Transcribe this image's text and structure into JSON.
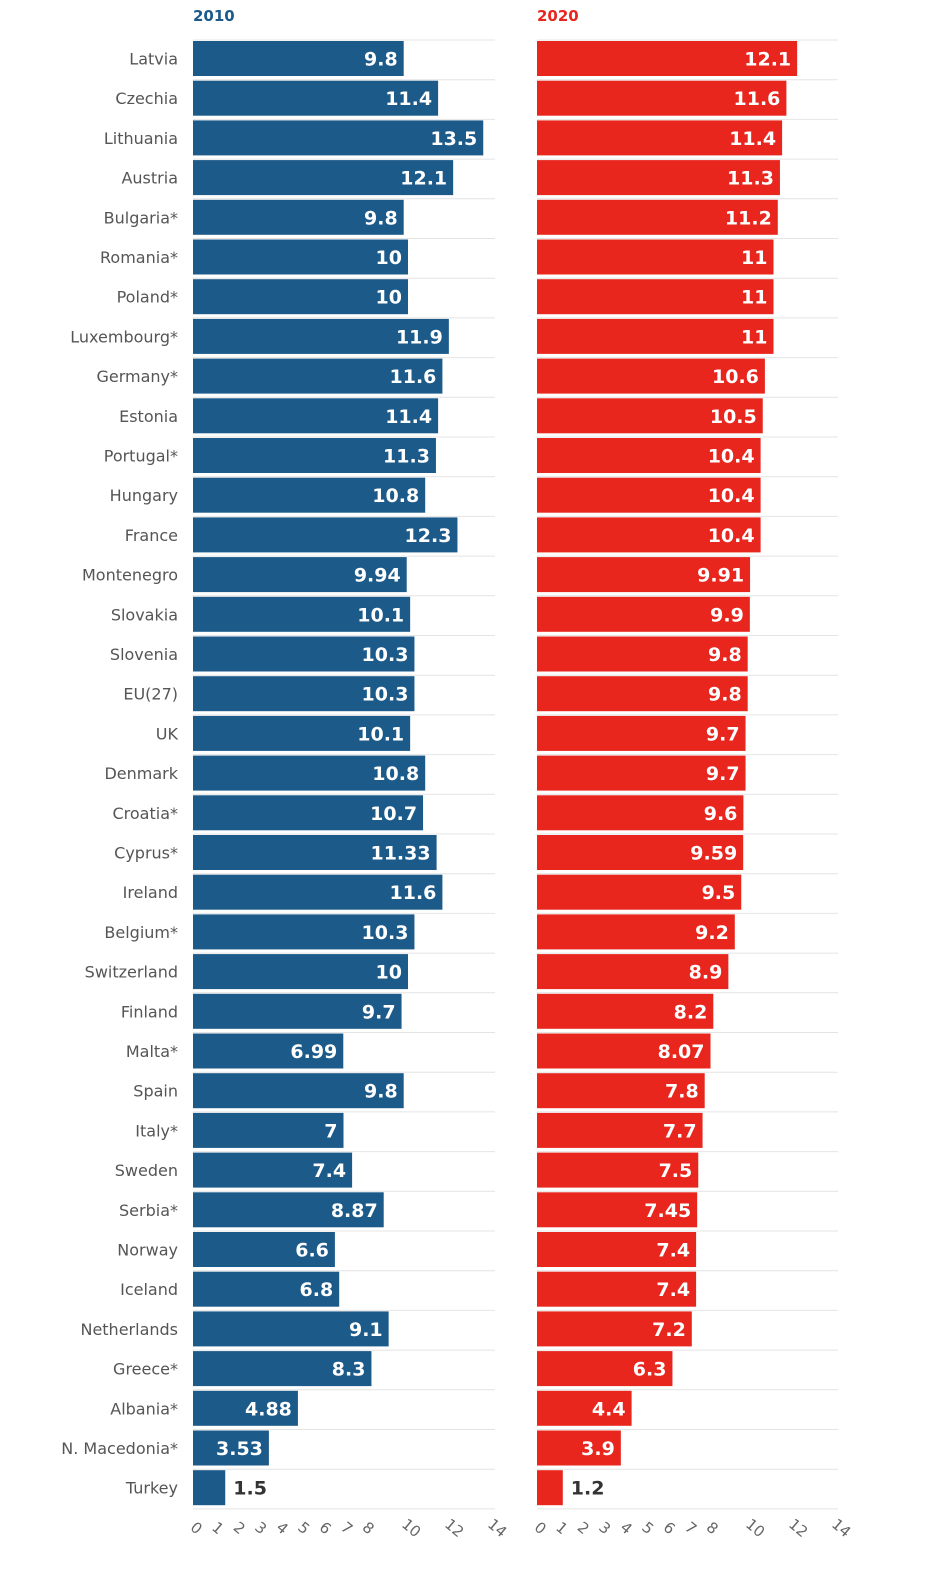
{
  "chart_data": {
    "type": "bar",
    "orientation": "horizontal",
    "categories": [
      "Latvia",
      "Czechia",
      "Lithuania",
      "Austria",
      "Bulgaria*",
      "Romania*",
      "Poland*",
      "Luxembourg*",
      "Germany*",
      "Estonia",
      "Portugal*",
      "Hungary",
      "France",
      "Montenegro",
      "Slovakia",
      "Slovenia",
      "EU(27)",
      "UK",
      "Denmark",
      "Croatia*",
      "Cyprus*",
      "Ireland",
      "Belgium*",
      "Switzerland",
      "Finland",
      "Malta*",
      "Spain",
      "Italy*",
      "Sweden",
      "Serbia*",
      "Norway",
      "Iceland",
      "Netherlands",
      "Greece*",
      "Albania*",
      "N. Macedonia*",
      "Turkey"
    ],
    "series": [
      {
        "name": "2010",
        "color": "#1c5a8a",
        "values": [
          9.8,
          11.4,
          13.5,
          12.1,
          9.8,
          10,
          10,
          11.9,
          11.6,
          11.4,
          11.3,
          10.8,
          12.3,
          9.94,
          10.1,
          10.3,
          10.3,
          10.1,
          10.8,
          10.7,
          11.33,
          11.6,
          10.3,
          10,
          9.7,
          6.99,
          9.8,
          7,
          7.4,
          8.87,
          6.6,
          6.8,
          9.1,
          8.3,
          4.88,
          3.53,
          1.5
        ],
        "labels": [
          "9.8",
          "11.4",
          "13.5",
          "12.1",
          "9.8",
          "10",
          "10",
          "11.9",
          "11.6",
          "11.4",
          "11.3",
          "10.8",
          "12.3",
          "9.94",
          "10.1",
          "10.3",
          "10.3",
          "10.1",
          "10.8",
          "10.7",
          "11.33",
          "11.6",
          "10.3",
          "10",
          "9.7",
          "6.99",
          "9.8",
          "7",
          "7.4",
          "8.87",
          "6.6",
          "6.8",
          "9.1",
          "8.3",
          "4.88",
          "3.53",
          "1.5"
        ]
      },
      {
        "name": "2020",
        "color": "#e8261e",
        "values": [
          12.1,
          11.6,
          11.4,
          11.3,
          11.2,
          11,
          11,
          11,
          10.6,
          10.5,
          10.4,
          10.4,
          10.4,
          9.91,
          9.9,
          9.8,
          9.8,
          9.7,
          9.7,
          9.6,
          9.59,
          9.5,
          9.2,
          8.9,
          8.2,
          8.07,
          7.8,
          7.7,
          7.5,
          7.45,
          7.4,
          7.4,
          7.2,
          6.3,
          4.4,
          3.9,
          1.2
        ],
        "labels": [
          "12.1",
          "11.6",
          "11.4",
          "11.3",
          "11.2",
          "11",
          "11",
          "11",
          "10.6",
          "10.5",
          "10.4",
          "10.4",
          "10.4",
          "9.91",
          "9.9",
          "9.8",
          "9.8",
          "9.7",
          "9.7",
          "9.6",
          "9.59",
          "9.5",
          "9.2",
          "8.9",
          "8.2",
          "8.07",
          "7.8",
          "7.7",
          "7.5",
          "7.45",
          "7.4",
          "7.4",
          "7.2",
          "6.3",
          "4.4",
          "3.9",
          "1.2"
        ]
      }
    ],
    "xlim": [
      0,
      14
    ],
    "xticks": [
      "0",
      "1",
      "2",
      "3",
      "4",
      "5",
      "6",
      "7",
      "8",
      "10",
      "12",
      "14"
    ],
    "xtick_values": [
      0,
      1,
      2,
      3,
      4,
      5,
      6,
      7,
      8,
      10,
      12,
      14
    ],
    "grid": true,
    "legend": "panel titles above each panel"
  }
}
